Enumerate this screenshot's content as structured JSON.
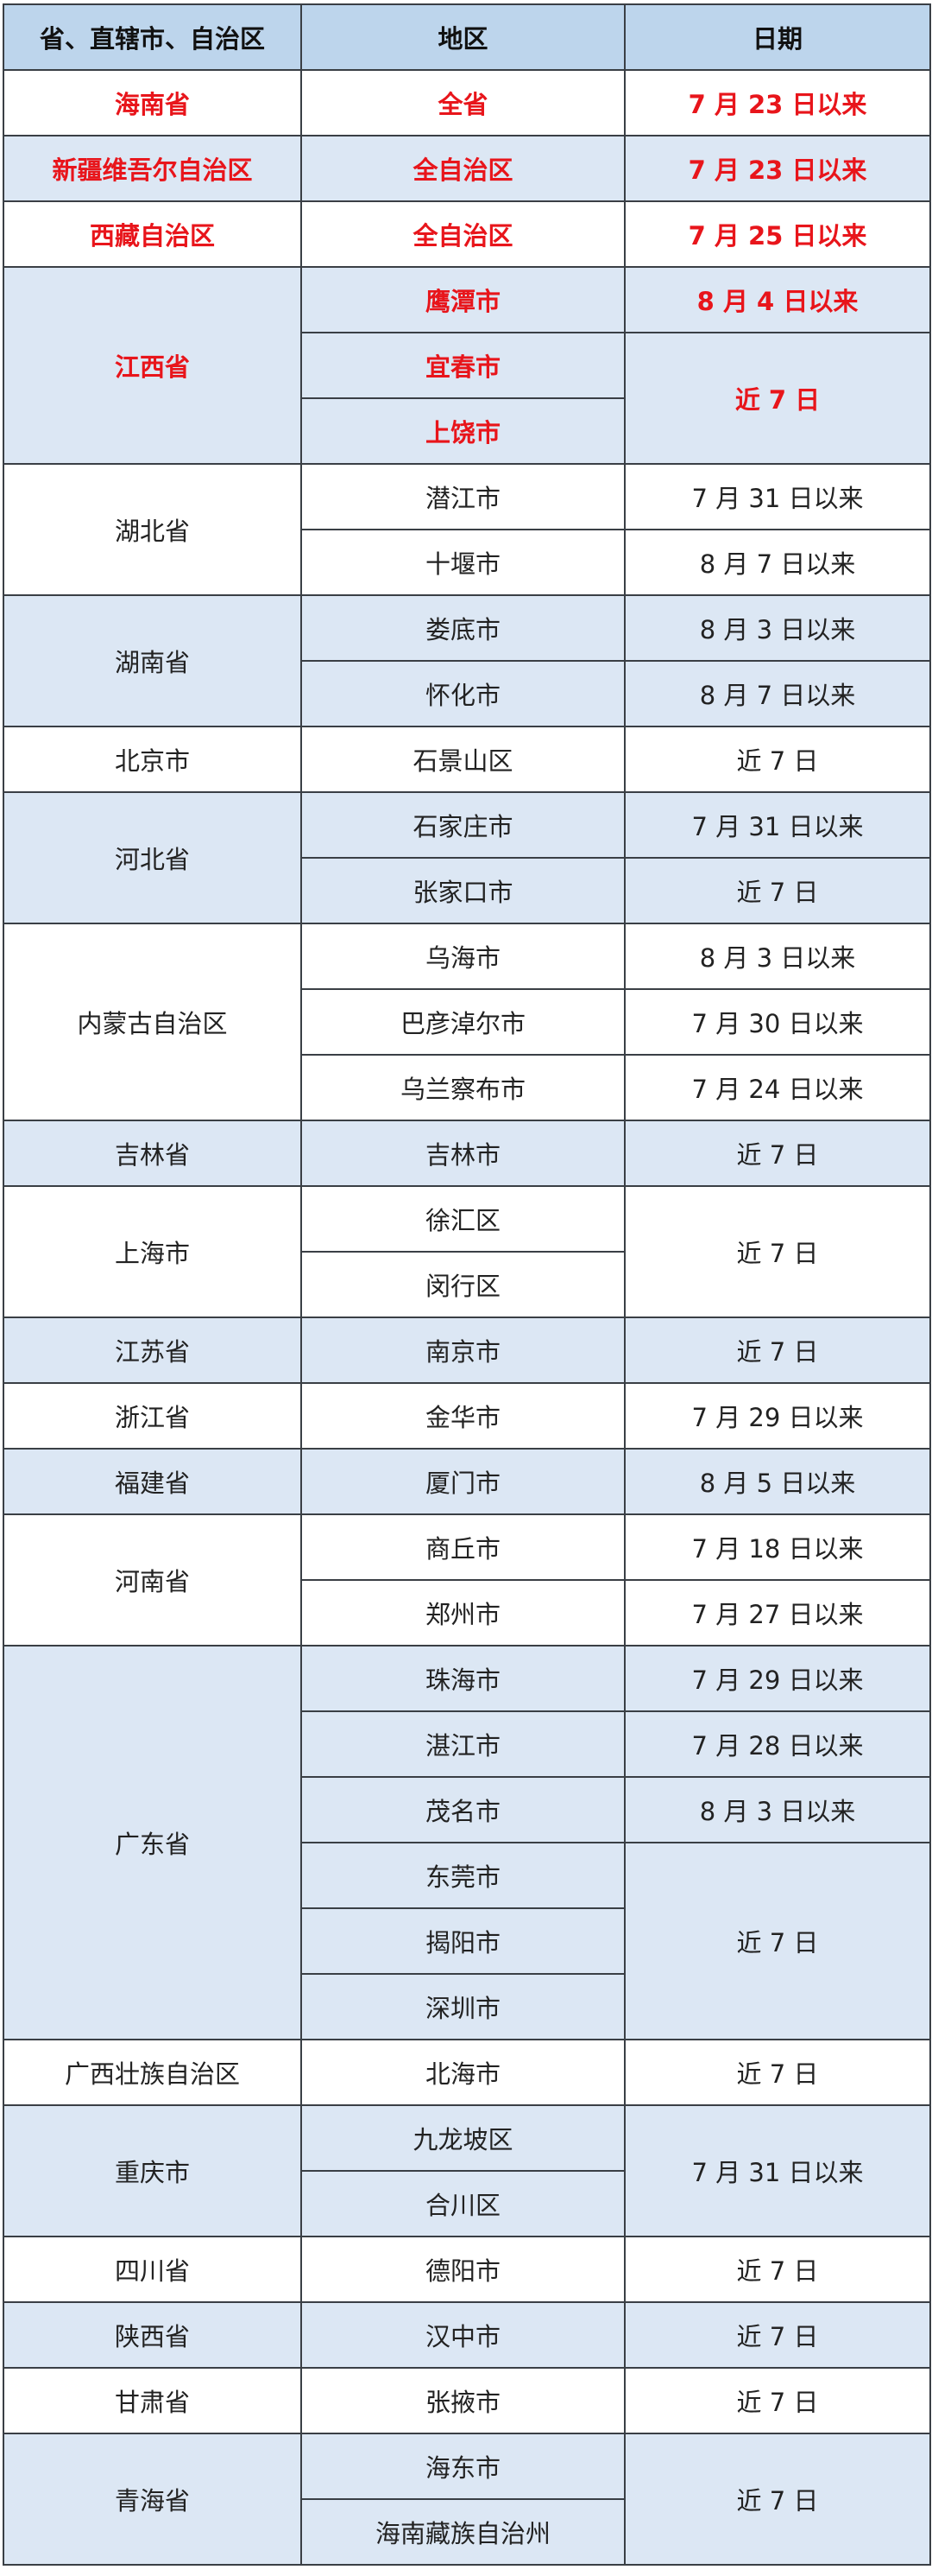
{
  "headers": [
    "省、直辖市、自治区",
    "地区",
    "日期"
  ],
  "colors": {
    "header_bg": "#bdd5ec",
    "alt_row_bg": "#dce7f4",
    "highlight_text": "#e8151b",
    "border": "#3a3f45"
  },
  "groups": [
    {
      "province": "海南省",
      "highlight": true,
      "regions": [
        "全省"
      ],
      "dates": [
        {
          "text": "7 月 23 日以来",
          "span": 1
        }
      ]
    },
    {
      "province": "新疆维吾尔自治区",
      "highlight": true,
      "regions": [
        "全自治区"
      ],
      "dates": [
        {
          "text": "7 月 23 日以来",
          "span": 1
        }
      ]
    },
    {
      "province": "西藏自治区",
      "highlight": true,
      "regions": [
        "全自治区"
      ],
      "dates": [
        {
          "text": "7 月 25 日以来",
          "span": 1
        }
      ]
    },
    {
      "province": "江西省",
      "highlight": true,
      "regions": [
        "鹰潭市",
        "宜春市",
        "上饶市"
      ],
      "dates": [
        {
          "text": "8 月 4 日以来",
          "span": 1
        },
        {
          "text": "近 7 日",
          "span": 2
        }
      ]
    },
    {
      "province": "湖北省",
      "regions": [
        "潜江市",
        "十堰市"
      ],
      "dates": [
        {
          "text": "7 月 31 日以来",
          "span": 1
        },
        {
          "text": "8 月 7 日以来",
          "span": 1
        }
      ]
    },
    {
      "province": "湖南省",
      "regions": [
        "娄底市",
        "怀化市"
      ],
      "dates": [
        {
          "text": "8 月 3 日以来",
          "span": 1
        },
        {
          "text": "8 月 7 日以来",
          "span": 1
        }
      ]
    },
    {
      "province": "北京市",
      "regions": [
        "石景山区"
      ],
      "dates": [
        {
          "text": "近 7 日",
          "span": 1
        }
      ]
    },
    {
      "province": "河北省",
      "regions": [
        "石家庄市",
        "张家口市"
      ],
      "dates": [
        {
          "text": "7 月 31 日以来",
          "span": 1
        },
        {
          "text": "近 7 日",
          "span": 1
        }
      ]
    },
    {
      "province": "内蒙古自治区",
      "regions": [
        "乌海市",
        "巴彦淖尔市",
        "乌兰察布市"
      ],
      "dates": [
        {
          "text": "8 月 3 日以来",
          "span": 1
        },
        {
          "text": "7 月 30 日以来",
          "span": 1
        },
        {
          "text": "7 月 24 日以来",
          "span": 1
        }
      ]
    },
    {
      "province": "吉林省",
      "regions": [
        "吉林市"
      ],
      "dates": [
        {
          "text": "近 7 日",
          "span": 1
        }
      ]
    },
    {
      "province": "上海市",
      "regions": [
        "徐汇区",
        "闵行区"
      ],
      "dates": [
        {
          "text": "近 7 日",
          "span": 2
        }
      ]
    },
    {
      "province": "江苏省",
      "regions": [
        "南京市"
      ],
      "dates": [
        {
          "text": "近 7 日",
          "span": 1
        }
      ]
    },
    {
      "province": "浙江省",
      "regions": [
        "金华市"
      ],
      "dates": [
        {
          "text": "7 月 29 日以来",
          "span": 1
        }
      ]
    },
    {
      "province": "福建省",
      "regions": [
        "厦门市"
      ],
      "dates": [
        {
          "text": "8 月 5 日以来",
          "span": 1
        }
      ]
    },
    {
      "province": "河南省",
      "regions": [
        "商丘市",
        "郑州市"
      ],
      "dates": [
        {
          "text": "7 月 18 日以来",
          "span": 1
        },
        {
          "text": "7 月 27 日以来",
          "span": 1
        }
      ]
    },
    {
      "province": "广东省",
      "regions": [
        "珠海市",
        "湛江市",
        "茂名市",
        "东莞市",
        "揭阳市",
        "深圳市"
      ],
      "dates": [
        {
          "text": "7 月 29 日以来",
          "span": 1
        },
        {
          "text": "7 月 28 日以来",
          "span": 1
        },
        {
          "text": "8 月 3 日以来",
          "span": 1
        },
        {
          "text": "近 7 日",
          "span": 3
        }
      ]
    },
    {
      "province": "广西壮族自治区",
      "regions": [
        "北海市"
      ],
      "dates": [
        {
          "text": "近 7 日",
          "span": 1
        }
      ]
    },
    {
      "province": "重庆市",
      "regions": [
        "九龙坡区",
        "合川区"
      ],
      "dates": [
        {
          "text": "7 月 31 日以来",
          "span": 2
        }
      ]
    },
    {
      "province": "四川省",
      "regions": [
        "德阳市"
      ],
      "dates": [
        {
          "text": "近 7 日",
          "span": 1
        }
      ]
    },
    {
      "province": "陕西省",
      "regions": [
        "汉中市"
      ],
      "dates": [
        {
          "text": "近 7 日",
          "span": 1
        }
      ]
    },
    {
      "province": "甘肃省",
      "regions": [
        "张掖市"
      ],
      "dates": [
        {
          "text": "近 7 日",
          "span": 1
        }
      ]
    },
    {
      "province": "青海省",
      "regions": [
        "海东市",
        "海南藏族自治州"
      ],
      "dates": [
        {
          "text": "近 7 日",
          "span": 2
        }
      ]
    }
  ]
}
